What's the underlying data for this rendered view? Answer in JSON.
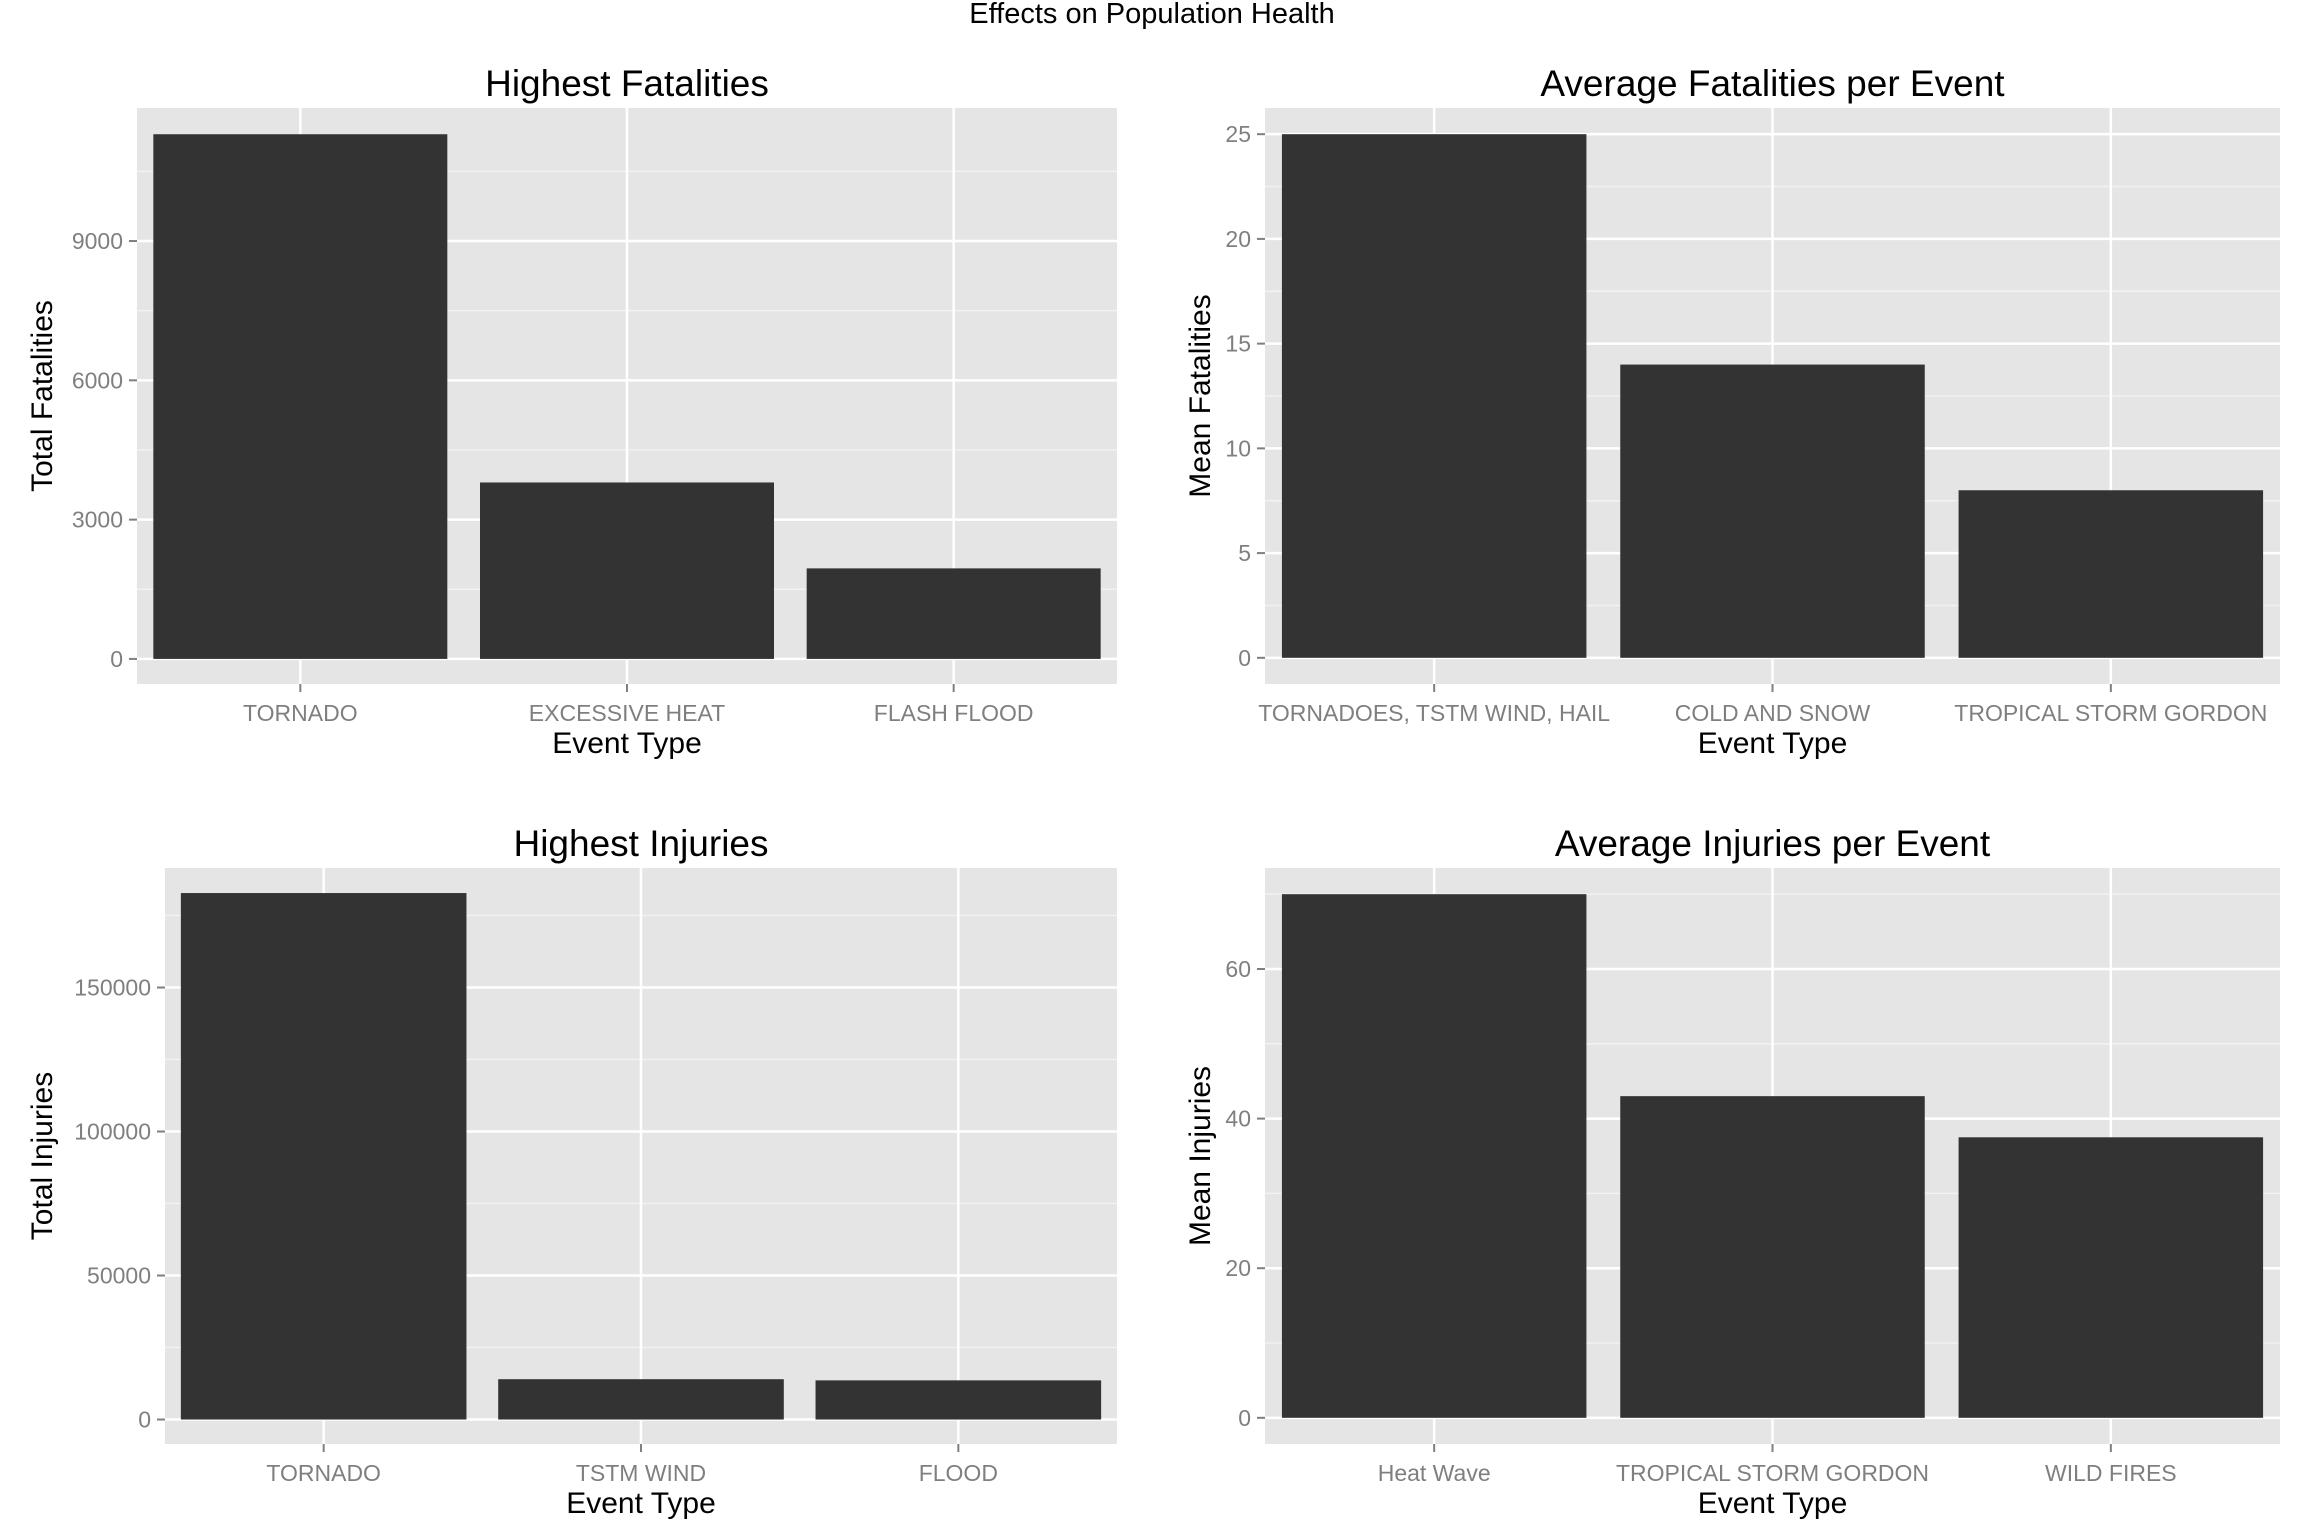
{
  "figure": {
    "suptitle": "Effects on Population Health"
  },
  "colors": {
    "panel": "#E5E5E5",
    "grid_major": "#FFFFFF",
    "grid_minor": "#F2F2F2",
    "bar": "#333333",
    "tick_text": "#7F7F7F",
    "title_text": "#000000"
  },
  "chart_data": [
    {
      "type": "bar",
      "title": "Highest Fatalities",
      "xlabel": "Event Type",
      "ylabel": "Total Fatalities",
      "categories": [
        "TORNADO",
        "EXCESSIVE HEAT",
        "FLASH FLOOD"
      ],
      "values": [
        11300,
        3800,
        1950
      ],
      "yticks": [
        0,
        3000,
        6000,
        9000
      ],
      "ylim": [
        -540,
        11865
      ],
      "grid": true
    },
    {
      "type": "bar",
      "title": "Average Fatalities per Event",
      "xlabel": "Event Type",
      "ylabel": "Mean Fatalities",
      "categories": [
        "TORNADOES, TSTM WIND, HAIL",
        "COLD AND SNOW",
        "TROPICAL STORM GORDON"
      ],
      "values": [
        25,
        14,
        8
      ],
      "yticks": [
        0,
        5,
        10,
        15,
        20,
        25
      ],
      "ylim": [
        -1.25,
        26.25
      ],
      "grid": true
    },
    {
      "type": "bar",
      "title": "Highest Injuries",
      "xlabel": "Event Type",
      "ylabel": "Total Injuries",
      "categories": [
        "TORNADO",
        "TSTM WIND",
        "FLOOD"
      ],
      "values": [
        182800,
        14000,
        13600
      ],
      "yticks": [
        0,
        50000,
        100000,
        150000
      ],
      "ylim": [
        -8500,
        191500
      ],
      "grid": true
    },
    {
      "type": "bar",
      "title": "Average Injuries per Event",
      "xlabel": "Event Type",
      "ylabel": "Mean Injuries",
      "categories": [
        "Heat Wave",
        "TROPICAL STORM GORDON",
        "WILD FIRES"
      ],
      "values": [
        70,
        43,
        37.5
      ],
      "yticks": [
        0,
        20,
        40,
        60
      ],
      "ylim": [
        -3.5,
        73.5
      ],
      "grid": true
    }
  ]
}
